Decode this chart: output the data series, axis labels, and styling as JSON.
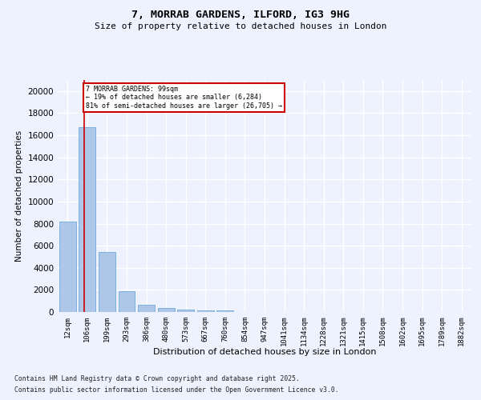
{
  "title": "7, MORRAB GARDENS, ILFORD, IG3 9HG",
  "subtitle": "Size of property relative to detached houses in London",
  "xlabel": "Distribution of detached houses by size in London",
  "ylabel": "Number of detached properties",
  "bar_color": "#aec6e8",
  "bar_edge_color": "#5a9fd4",
  "categories": [
    "12sqm",
    "106sqm",
    "199sqm",
    "293sqm",
    "386sqm",
    "480sqm",
    "573sqm",
    "667sqm",
    "760sqm",
    "854sqm",
    "947sqm",
    "1041sqm",
    "1134sqm",
    "1228sqm",
    "1321sqm",
    "1415sqm",
    "1508sqm",
    "1602sqm",
    "1695sqm",
    "1789sqm",
    "1882sqm"
  ],
  "values": [
    8200,
    16700,
    5400,
    1850,
    650,
    380,
    250,
    170,
    130,
    0,
    0,
    0,
    0,
    0,
    0,
    0,
    0,
    0,
    0,
    0,
    0
  ],
  "ylim": [
    0,
    21000
  ],
  "yticks": [
    0,
    2000,
    4000,
    6000,
    8000,
    10000,
    12000,
    14000,
    16000,
    18000,
    20000
  ],
  "vline_x": 0.85,
  "annotation_text": "7 MORRAB GARDENS: 99sqm\n← 19% of detached houses are smaller (6,284)\n81% of semi-detached houses are larger (26,705) →",
  "vline_color": "#cc0000",
  "background_color": "#eef2ff",
  "grid_color": "#ffffff",
  "footer_line1": "Contains HM Land Registry data © Crown copyright and database right 2025.",
  "footer_line2": "Contains public sector information licensed under the Open Government Licence v3.0."
}
